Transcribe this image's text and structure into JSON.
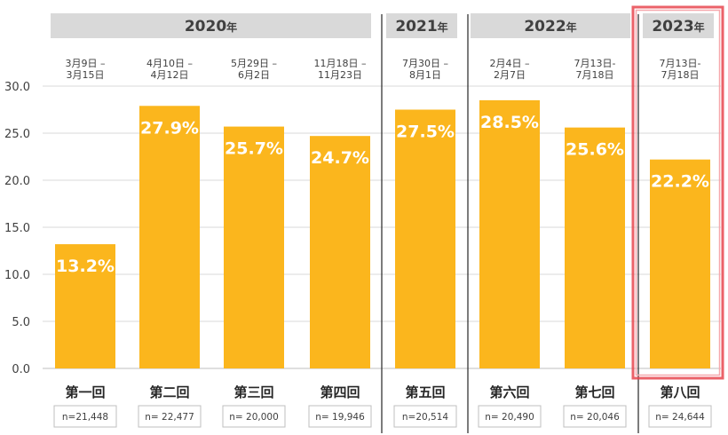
{
  "chart_data": {
    "type": "bar",
    "ylim": [
      0,
      30
    ],
    "yticks": [
      "30.0",
      "25.0",
      "20.0",
      "15.0",
      "10.0",
      "5.0",
      "0.0"
    ],
    "grid": true,
    "bar_color": "#fbb61d",
    "highlight_color": "#e8474f",
    "highlight_category": "第八回",
    "year_groups": [
      {
        "label": "2020",
        "suffix": "年",
        "categories": [
          "第一回",
          "第二回",
          "第三回",
          "第四回"
        ]
      },
      {
        "label": "2021",
        "suffix": "年",
        "categories": [
          "第五回"
        ]
      },
      {
        "label": "2022",
        "suffix": "年",
        "categories": [
          "第六回",
          "第七回"
        ]
      },
      {
        "label": "2023",
        "suffix": "年",
        "categories": [
          "第八回"
        ]
      }
    ],
    "categories": [
      "第一回",
      "第二回",
      "第三回",
      "第四回",
      "第五回",
      "第六回",
      "第七回",
      "第八回"
    ],
    "values": [
      13.2,
      27.9,
      25.7,
      24.7,
      27.5,
      28.5,
      25.6,
      22.2
    ],
    "value_labels": [
      "13.2%",
      "27.9%",
      "25.7%",
      "24.7%",
      "27.5%",
      "28.5%",
      "25.6%",
      "22.2%"
    ],
    "periods": [
      [
        "3月9日 –",
        "3月15日"
      ],
      [
        "4月10日 –",
        "4月12日"
      ],
      [
        "5月29日 –",
        "6月2日"
      ],
      [
        "11月18日 –",
        "11月23日"
      ],
      [
        "7月30日 –",
        "8月1日"
      ],
      [
        "2月4日 –",
        "2月7日"
      ],
      [
        "7月13日-",
        "7月18日"
      ],
      [
        "7月13日-",
        "7月18日"
      ]
    ],
    "sample_sizes": [
      "n=21,448",
      "n= 22,477",
      "n= 20,000",
      "n= 19,946",
      "n=20,514",
      "n= 20,490",
      "n= 20,046",
      "n= 24,644"
    ]
  }
}
